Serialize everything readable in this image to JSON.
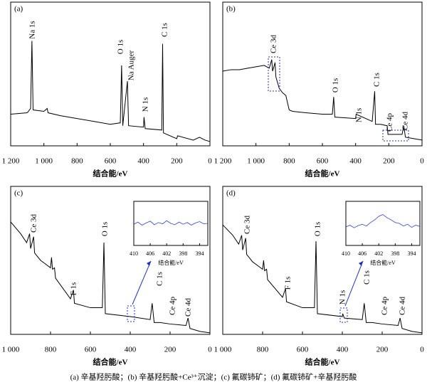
{
  "chart_data": [
    {
      "type": "line",
      "title": "(a)",
      "x_label": "结合能/eV",
      "x": [
        1200,
        1100,
        1080,
        1072,
        1065,
        1000,
        980,
        975,
        900,
        800,
        700,
        600,
        540,
        532,
        525,
        497,
        490,
        400,
        397,
        390,
        290,
        285,
        280,
        200,
        195,
        100,
        63,
        30,
        0
      ],
      "series": [
        {
          "color": "#000000",
          "values": [
            22,
            23,
            26,
            73,
            25,
            24,
            26,
            23,
            21,
            19,
            17,
            15,
            16,
            56,
            14,
            45,
            14,
            13,
            20,
            12,
            11,
            71,
            9,
            5,
            7,
            4,
            6,
            4,
            3
          ]
        }
      ],
      "annotations": [
        "Na 1s",
        "O 1s",
        "Na Auger",
        "N 1s",
        "C 1s"
      ],
      "xlim": [
        1200,
        0
      ],
      "xticks": [
        {
          "value": 1200,
          "label": "1 200"
        },
        {
          "value": 1000,
          "label": "1 000"
        },
        800,
        600,
        400,
        200,
        0
      ],
      "ylim": [
        0,
        100
      ]
    },
    {
      "type": "line",
      "title": "(b)",
      "x_label": "结合能/eV",
      "x": [
        1200,
        1150,
        1100,
        1050,
        1000,
        950,
        920,
        905,
        900,
        885,
        880,
        860,
        840,
        820,
        810,
        800,
        780,
        700,
        600,
        540,
        532,
        525,
        400,
        397,
        300,
        285,
        280,
        250,
        210,
        205,
        150,
        120,
        110,
        100,
        50,
        0
      ],
      "series": [
        {
          "color": "#000000",
          "values": [
            52,
            53,
            53,
            54,
            55,
            56,
            54,
            60,
            52,
            58,
            48,
            40,
            37,
            35,
            30,
            25,
            24,
            23,
            22,
            22,
            34,
            20,
            19,
            22,
            17,
            38,
            15,
            15,
            14,
            8,
            8,
            8,
            14,
            6,
            5,
            4
          ]
        }
      ],
      "annotations": [
        "Ce 3d",
        "O 1s",
        "N 1s",
        "C 1s",
        "Ce 4p",
        "Ce 4d"
      ],
      "xlim": [
        1200,
        0
      ],
      "xticks": [
        {
          "value": 1200,
          "label": "1 200"
        },
        {
          "value": 1000,
          "label": "1 000"
        },
        800,
        600,
        400,
        200,
        0
      ],
      "ylim": [
        0,
        100
      ]
    },
    {
      "type": "line",
      "title": "(c)",
      "x_label": "结合能/eV",
      "x": [
        1000,
        950,
        920,
        905,
        900,
        885,
        880,
        850,
        830,
        800,
        795,
        790,
        780,
        775,
        700,
        685,
        680,
        600,
        540,
        532,
        525,
        400,
        300,
        290,
        280,
        250,
        200,
        120,
        110,
        100,
        50,
        0
      ],
      "series": [
        {
          "color": "#000000",
          "values": [
            76,
            68,
            62,
            68,
            58,
            66,
            55,
            50,
            48,
            45,
            52,
            44,
            45,
            38,
            24,
            30,
            21,
            18,
            18,
            62,
            14,
            12,
            10,
            21,
            8,
            8,
            7,
            6,
            11,
            4,
            2,
            1
          ]
        }
      ],
      "annotations": [
        "Ce 3d",
        "O 1s",
        "F 1s",
        "C 1s",
        "Ce 4p",
        "Ce 4d"
      ],
      "xlim": [
        1000,
        0
      ],
      "xticks": [
        {
          "value": 1000,
          "label": "1 000"
        },
        800,
        600,
        400,
        200,
        0
      ],
      "ylim": [
        0,
        100
      ]
    },
    {
      "type": "line",
      "title": "(d)",
      "x_label": "结合能/eV",
      "x": [
        1000,
        950,
        920,
        905,
        900,
        885,
        880,
        850,
        830,
        800,
        795,
        790,
        780,
        775,
        700,
        685,
        680,
        600,
        540,
        532,
        525,
        400,
        398,
        390,
        300,
        290,
        280,
        250,
        200,
        120,
        110,
        100,
        50,
        0
      ],
      "series": [
        {
          "color": "#000000",
          "values": [
            74,
            67,
            61,
            67,
            57,
            65,
            54,
            49,
            47,
            44,
            50,
            43,
            44,
            37,
            25,
            31,
            22,
            18,
            18,
            63,
            14,
            12,
            14,
            11,
            10,
            21,
            8,
            8,
            7,
            6,
            11,
            4,
            2,
            1
          ]
        }
      ],
      "annotations": [
        "Ce 3d",
        "O 1s",
        "F 1s",
        "N 1s",
        "C 1s",
        "Ce 4p",
        "Ce 4d"
      ],
      "xlim": [
        1000,
        0
      ],
      "xticks": [
        {
          "value": 1000,
          "label": "1 000"
        },
        800,
        600,
        400,
        200,
        0
      ],
      "ylim": [
        0,
        100
      ]
    },
    {
      "type": "line",
      "x_label": "结合能/eV",
      "x": [
        410,
        409,
        408,
        407,
        406,
        405,
        404,
        403,
        402,
        401,
        400,
        399,
        398,
        397,
        396,
        395,
        394,
        393,
        392
      ],
      "series": [
        {
          "color": "#3344cc",
          "values": [
            48,
            53,
            46,
            51,
            55,
            47,
            52,
            49,
            56,
            50,
            47,
            53,
            48,
            52,
            46,
            51,
            54,
            49,
            50
          ]
        }
      ],
      "xlim": [
        410,
        392
      ],
      "xticks": [
        410,
        406,
        402,
        398,
        394
      ],
      "ylim": [
        0,
        100
      ]
    },
    {
      "type": "line",
      "x_label": "结合能/eV",
      "x": [
        410,
        409,
        408,
        407,
        406,
        405,
        404,
        403,
        402,
        401,
        400,
        399,
        398,
        397,
        396,
        395,
        394,
        393,
        392
      ],
      "series": [
        {
          "color": "#3344cc",
          "values": [
            42,
            46,
            40,
            45,
            48,
            44,
            52,
            58,
            66,
            70,
            63,
            58,
            52,
            50,
            44,
            48,
            41,
            46,
            43
          ]
        }
      ],
      "xlim": [
        410,
        392
      ],
      "xticks": [
        410,
        406,
        402,
        398,
        394
      ],
      "ylim": [
        0,
        100
      ]
    }
  ],
  "caption": "(a) 辛基羟肟酸；(b) 辛基羟肟酸+Ce³⁺沉淀；(c) 氟碳铈矿；(d) 氟碳铈矿+辛基羟肟酸"
}
